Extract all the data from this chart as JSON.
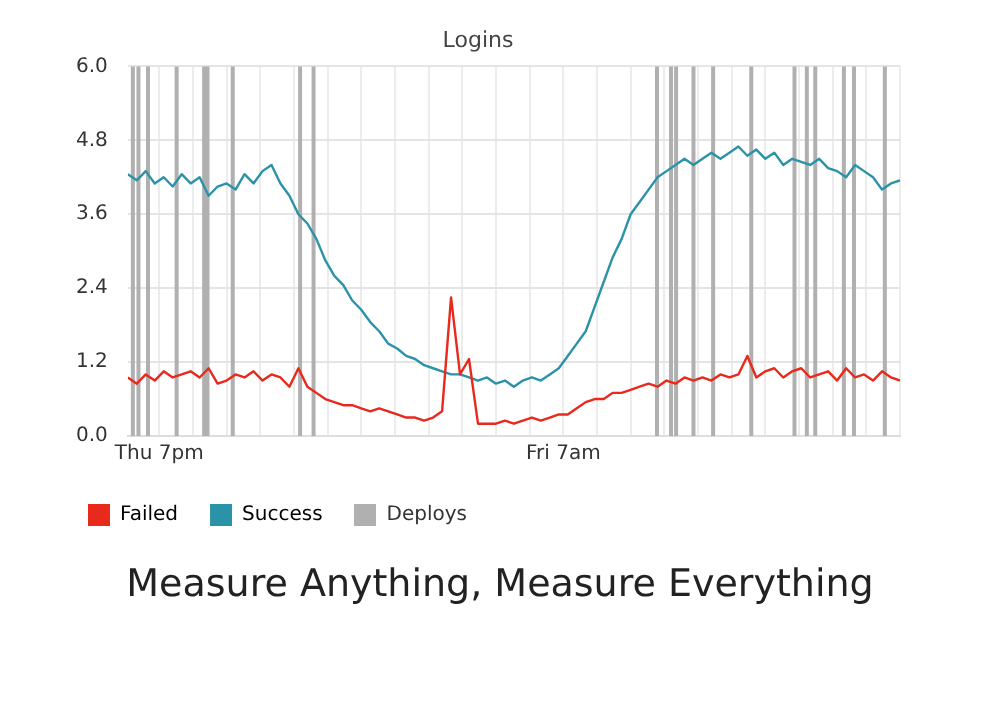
{
  "chart_data": {
    "type": "line",
    "title": "Logins",
    "annotations": [
      "Measure Anything, Measure Everything"
    ],
    "x": [
      "--02-10T18:04",
      "--02-10T18:20",
      "--02-10T18:36",
      "--02-10T18:52",
      "--02-10T19:08",
      "--02-10T19:24",
      "--02-10T19:40",
      "--02-10T19:56",
      "--02-10T20:12",
      "--02-10T20:28",
      "--02-10T20:44",
      "--02-10T21:00",
      "--02-10T21:16",
      "--02-10T21:32",
      "--02-10T21:48",
      "--02-10T22:04",
      "--02-10T22:20",
      "--02-10T22:36",
      "--02-10T22:52",
      "--02-10T23:08",
      "--02-10T23:24",
      "--02-10T23:40",
      "--02-10T23:56",
      "--02-11T00:12",
      "--02-11T00:28",
      "--02-11T00:44",
      "--02-11T01:00",
      "--02-11T01:16",
      "--02-11T01:32",
      "--02-11T01:48",
      "--02-11T02:04",
      "--02-11T02:20",
      "--02-11T02:36",
      "--02-11T02:52",
      "--02-11T03:08",
      "--02-11T03:24",
      "--02-11T03:40",
      "--02-11T03:56",
      "--02-11T04:12",
      "--02-11T04:28",
      "--02-11T04:44",
      "--02-11T05:00",
      "--02-11T05:16",
      "--02-11T05:32",
      "--02-11T05:48",
      "--02-11T06:04",
      "--02-11T06:20",
      "--02-11T06:36",
      "--02-11T06:52",
      "--02-11T07:08",
      "--02-11T07:24",
      "--02-11T07:40",
      "--02-11T07:56",
      "--02-11T08:12",
      "--02-11T08:28",
      "--02-11T08:44",
      "--02-11T09:00",
      "--02-11T09:16",
      "--02-11T09:32",
      "--02-11T09:48",
      "--02-11T10:04",
      "--02-11T10:20",
      "--02-11T10:36",
      "--02-11T10:52",
      "--02-11T11:08",
      "--02-11T11:24",
      "--02-11T11:40",
      "--02-11T11:56",
      "--02-11T12:12",
      "--02-11T12:28",
      "--02-11T12:44",
      "--02-11T13:00",
      "--02-11T13:16",
      "--02-11T13:32",
      "--02-11T13:48",
      "--02-11T14:04",
      "--02-11T14:20",
      "--02-11T14:36",
      "--02-11T14:52",
      "--02-11T15:08",
      "--02-11T15:24",
      "--02-11T15:40",
      "--02-11T15:56",
      "--02-11T16:12",
      "--02-11T16:28",
      "--02-11T16:44",
      "--02-11T17:00"
    ],
    "series": [
      {
        "name": "Failed",
        "color": "#e8291c",
        "values": [
          0.95,
          0.85,
          1.0,
          0.9,
          1.05,
          0.95,
          1.0,
          1.05,
          0.95,
          1.1,
          0.85,
          0.9,
          1.0,
          0.95,
          1.05,
          0.9,
          1.0,
          0.95,
          0.8,
          1.1,
          0.8,
          0.7,
          0.6,
          0.55,
          0.5,
          0.5,
          0.45,
          0.4,
          0.45,
          0.4,
          0.35,
          0.3,
          0.3,
          0.25,
          0.3,
          0.4,
          2.25,
          1.0,
          1.25,
          0.2,
          0.2,
          0.2,
          0.25,
          0.2,
          0.25,
          0.3,
          0.25,
          0.3,
          0.35,
          0.35,
          0.45,
          0.55,
          0.6,
          0.6,
          0.7,
          0.7,
          0.75,
          0.8,
          0.85,
          0.8,
          0.9,
          0.85,
          0.95,
          0.9,
          0.95,
          0.9,
          1.0,
          0.95,
          1.0,
          1.3,
          0.95,
          1.05,
          1.1,
          0.95,
          1.05,
          1.1,
          0.95,
          1.0,
          1.05,
          0.9,
          1.1,
          0.95,
          1.0,
          0.9,
          1.05,
          0.95,
          0.9
        ]
      },
      {
        "name": "Success",
        "color": "#2b93a8",
        "values": [
          4.25,
          4.15,
          4.3,
          4.1,
          4.2,
          4.05,
          4.25,
          4.1,
          4.2,
          3.9,
          4.05,
          4.1,
          4.0,
          4.25,
          4.1,
          4.3,
          4.4,
          4.1,
          3.9,
          3.6,
          3.45,
          3.2,
          2.85,
          2.6,
          2.45,
          2.2,
          2.05,
          1.85,
          1.7,
          1.5,
          1.42,
          1.3,
          1.25,
          1.15,
          1.1,
          1.05,
          1.0,
          1.0,
          0.95,
          0.9,
          0.95,
          0.85,
          0.9,
          0.8,
          0.9,
          0.95,
          0.9,
          1.0,
          1.1,
          1.3,
          1.5,
          1.7,
          2.1,
          2.5,
          2.9,
          3.2,
          3.6,
          3.8,
          4.0,
          4.2,
          4.3,
          4.4,
          4.5,
          4.4,
          4.5,
          4.6,
          4.5,
          4.6,
          4.7,
          4.55,
          4.65,
          4.5,
          4.6,
          4.4,
          4.5,
          4.45,
          4.4,
          4.5,
          4.35,
          4.3,
          4.2,
          4.4,
          4.3,
          4.2,
          4.0,
          4.1,
          4.15
        ]
      }
    ],
    "xlim": [
      "--02-10T18:04",
      "--02-11T17:00"
    ],
    "xticks": [
      {
        "value": "--02-10T19:00",
        "label": "Thu 7pm"
      },
      {
        "value": "--02-10T20:00",
        "label": null
      },
      {
        "value": "--02-10T21:00",
        "label": null
      },
      {
        "value": "--02-10T22:00",
        "label": null
      },
      {
        "value": "--02-10T23:00",
        "label": null
      },
      {
        "value": "--02-11T00:00",
        "label": null
      },
      {
        "value": "--02-11T01:00",
        "label": null
      },
      {
        "value": "--02-11T02:00",
        "label": null
      },
      {
        "value": "--02-11T03:00",
        "label": null
      },
      {
        "value": "--02-11T04:00",
        "label": null
      },
      {
        "value": "--02-11T05:00",
        "label": null
      },
      {
        "value": "--02-11T06:00",
        "label": null
      },
      {
        "value": "--02-11T07:00",
        "label": "Fri 7am"
      },
      {
        "value": "--02-11T08:00",
        "label": null
      },
      {
        "value": "--02-11T09:00",
        "label": null
      },
      {
        "value": "--02-11T10:00",
        "label": null
      },
      {
        "value": "--02-11T11:00",
        "label": null
      },
      {
        "value": "--02-11T12:00",
        "label": null
      },
      {
        "value": "--02-11T13:00",
        "label": null
      },
      {
        "value": "--02-11T14:00",
        "label": null
      },
      {
        "value": "--02-11T15:00",
        "label": null
      },
      {
        "value": "--02-11T16:00",
        "label": null
      },
      {
        "value": "--02-11T17:00",
        "label": null
      }
    ],
    "ylim": [
      0,
      6
    ],
    "yticks": [
      {
        "value": 0,
        "label": "0.0"
      },
      {
        "value": 1.2,
        "label": "1.2"
      },
      {
        "value": 2.4,
        "label": "2.4"
      },
      {
        "value": 3.6,
        "label": "3.6"
      },
      {
        "value": 4.8,
        "label": "4.8"
      },
      {
        "value": 6,
        "label": "6.0"
      }
    ],
    "ref_lines": [
      {
        "axis": "x",
        "value": "--02-10T18:13",
        "label": "Deploys",
        "color": "#b0b0b0"
      },
      {
        "axis": "x",
        "value": "--02-10T18:23",
        "color": "#b0b0b0"
      },
      {
        "axis": "x",
        "value": "--02-10T18:40",
        "color": "#b0b0b0"
      },
      {
        "axis": "x",
        "value": "--02-10T19:31",
        "color": "#b0b0b0"
      },
      {
        "axis": "x",
        "value": "--02-10T20:20",
        "color": "#b0b0b0"
      },
      {
        "axis": "x",
        "value": "--02-10T20:26",
        "color": "#b0b0b0"
      },
      {
        "axis": "x",
        "value": "--02-10T21:11",
        "color": "#b0b0b0"
      },
      {
        "axis": "x",
        "value": "--02-10T23:11",
        "color": "#b0b0b0"
      },
      {
        "axis": "x",
        "value": "--02-10T23:35",
        "color": "#b0b0b0"
      },
      {
        "axis": "x",
        "value": "--02-11T09:47",
        "color": "#b0b0b0"
      },
      {
        "axis": "x",
        "value": "--02-11T10:12",
        "color": "#b0b0b0"
      },
      {
        "axis": "x",
        "value": "--02-11T10:21",
        "color": "#b0b0b0"
      },
      {
        "axis": "x",
        "value": "--02-11T10:52",
        "color": "#b0b0b0"
      },
      {
        "axis": "x",
        "value": "--02-11T11:27",
        "color": "#b0b0b0"
      },
      {
        "axis": "x",
        "value": "--02-11T12:35",
        "color": "#b0b0b0"
      },
      {
        "axis": "x",
        "value": "--02-11T13:52",
        "color": "#b0b0b0"
      },
      {
        "axis": "x",
        "value": "--02-11T14:14",
        "color": "#b0b0b0"
      },
      {
        "axis": "x",
        "value": "--02-11T14:29",
        "color": "#b0b0b0"
      },
      {
        "axis": "x",
        "value": "--02-11T15:20",
        "color": "#b0b0b0"
      },
      {
        "axis": "x",
        "value": "--02-11T15:38",
        "color": "#b0b0b0"
      },
      {
        "axis": "x",
        "value": "--02-11T16:33",
        "color": "#b0b0b0"
      }
    ],
    "grid": true,
    "legend": "bottom left",
    "marker": "none",
    "line_style": "solid"
  }
}
